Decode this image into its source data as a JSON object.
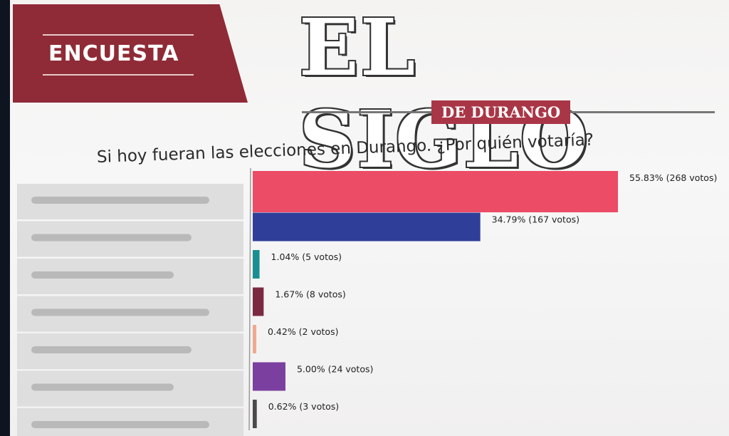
{
  "header": {
    "tag": "ENCUESTA",
    "masthead": "EL SIGLO",
    "masthead_sub": "DE DURANGO"
  },
  "chart_data": {
    "type": "bar",
    "orientation": "horizontal",
    "title": "Si hoy fueran las elecciones en Durango. ¿Por quién votaría?",
    "categories": [
      "",
      "",
      "",
      "",
      "",
      "",
      ""
    ],
    "percent": [
      55.83,
      34.79,
      1.04,
      1.67,
      0.42,
      5.0,
      0.62
    ],
    "votes": [
      268,
      167,
      5,
      8,
      2,
      24,
      3
    ],
    "labels": [
      "55.83% (268 votos)",
      "34.79% (167 votos)",
      "1.04% (5 votos)",
      "1.67% (8 votos)",
      "0.42% (2 votos)",
      "5.00% (24 votos)",
      "0.62% (3 votos)"
    ],
    "colors": [
      "#ec4c65",
      "#2f3f99",
      "#1a8f93",
      "#7b2941",
      "#f0a98e",
      "#7b3fa0",
      "#4a4a4a"
    ],
    "xlim": [
      0,
      55.83
    ]
  }
}
